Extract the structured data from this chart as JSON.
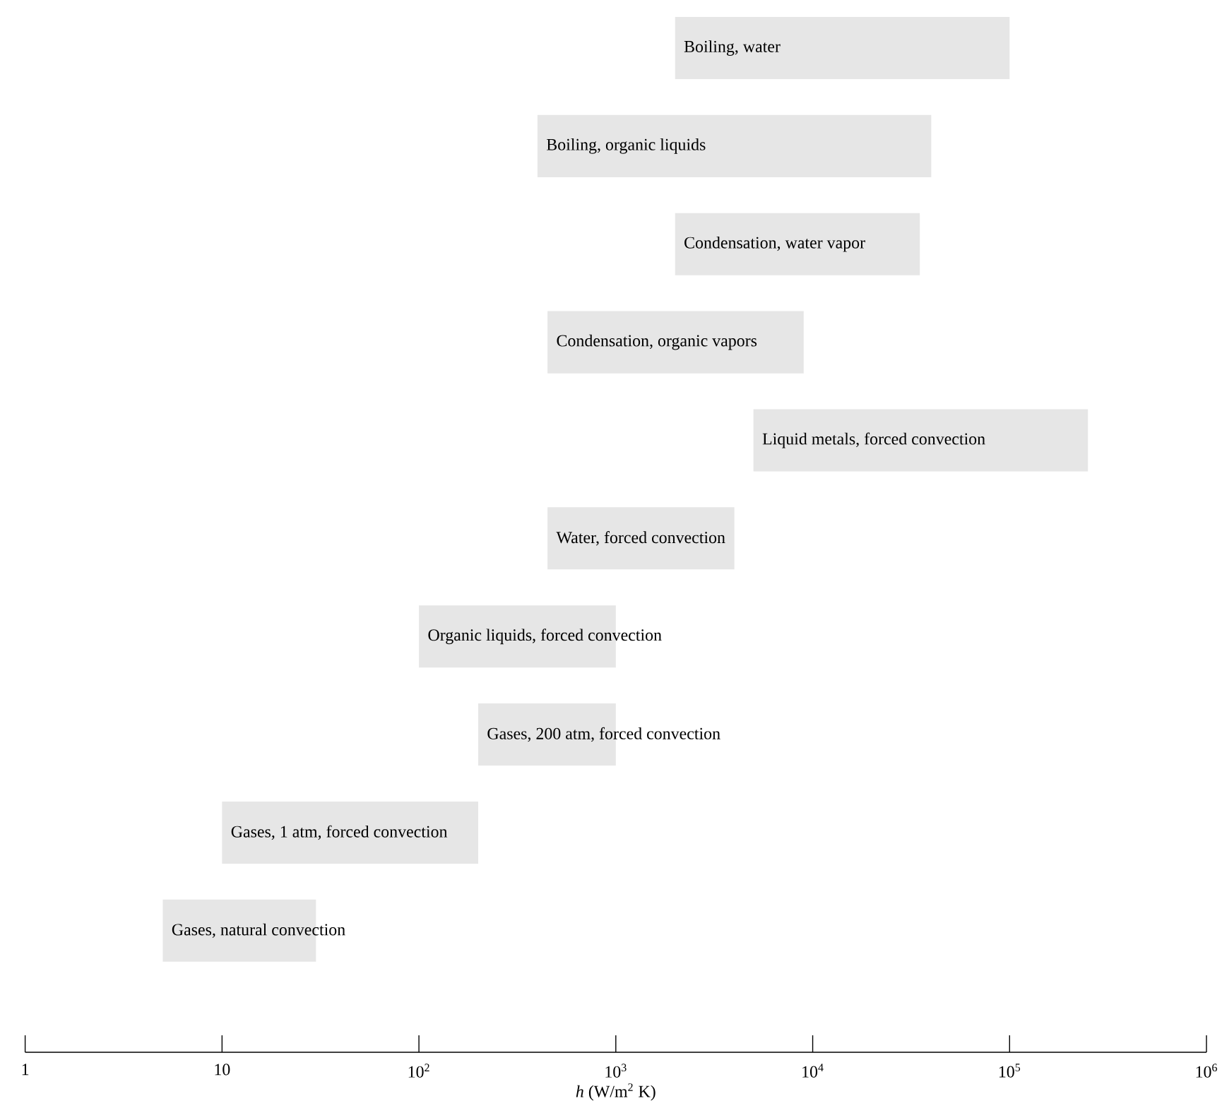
{
  "chart_data": {
    "type": "bar",
    "orientation": "horizontal",
    "log": "x",
    "color": "#e6e6e6",
    "categories": [
      "Boiling, water",
      "Boiling, organic liquids",
      "Condensation, water vapor",
      "Condensation, organic vapors",
      "Liquid metals, forced convection",
      "Water, forced convection",
      "Organic liquids, forced convection",
      "Gases, 200 atm, forced convection",
      "Gases, 1 atm, forced convection",
      "Gases, natural convection"
    ],
    "base": [
      2000,
      400,
      2000,
      450,
      5000,
      450,
      100,
      200,
      10,
      5
    ],
    "values": [
      98000,
      39600,
      33000,
      8550,
      245000,
      3550,
      900,
      800,
      190,
      25
    ],
    "xlim": [
      1,
      1000000
    ],
    "xticks": [
      1,
      10,
      {
        "value": 100,
        "label": "10$^{2}$"
      },
      {
        "value": 1000,
        "label": "10$^{3}$"
      },
      {
        "value": 10000,
        "label": "10$^{4}$"
      },
      {
        "value": 100000,
        "label": "10$^{5}$"
      },
      {
        "value": 1000000,
        "label": "10$^{6}$"
      }
    ],
    "xlabel": "*h* (W/m$^{2}$ K)"
  }
}
